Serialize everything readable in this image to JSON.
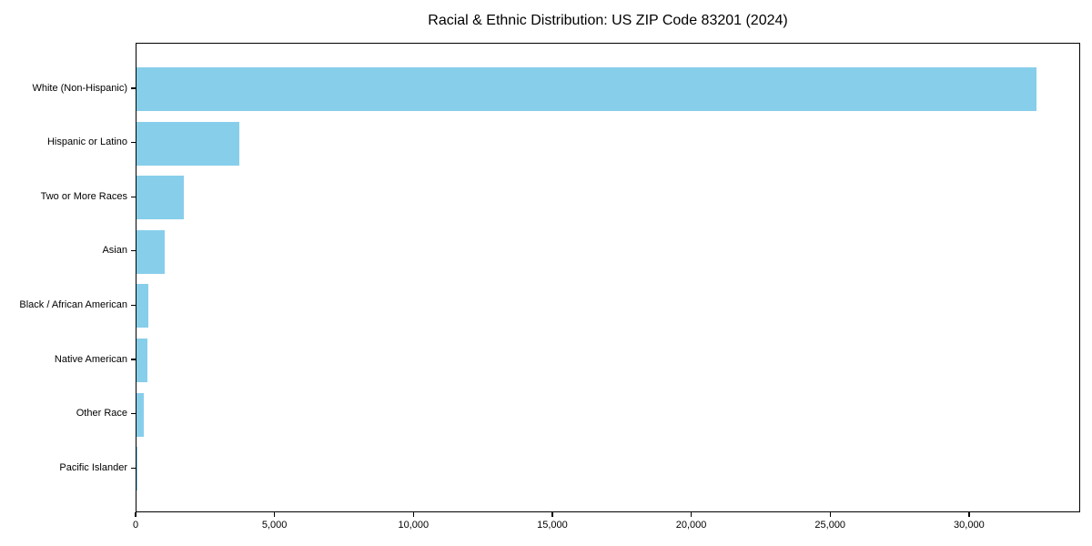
{
  "chart_data": {
    "type": "bar",
    "orientation": "horizontal",
    "title": "Racial & Ethnic Distribution: US ZIP Code 83201 (2024)",
    "categories": [
      "White (Non-Hispanic)",
      "Hispanic or Latino",
      "Two or More Races",
      "Asian",
      "Black / African American",
      "Native American",
      "Other Race",
      "Pacific Islander"
    ],
    "values": [
      32400,
      3700,
      1700,
      1000,
      430,
      400,
      250,
      40
    ],
    "xlabel": "",
    "ylabel": "",
    "xlim": [
      0,
      34000
    ],
    "x_tick_values": [
      0,
      5000,
      10000,
      15000,
      20000,
      25000,
      30000
    ],
    "x_tick_labels": [
      "0",
      "5,000",
      "10,000",
      "15,000",
      "20,000",
      "25,000",
      "30,000"
    ],
    "bar_color": "#87CEEB",
    "frame_color": "#000000",
    "grid": false,
    "legend": null
  }
}
